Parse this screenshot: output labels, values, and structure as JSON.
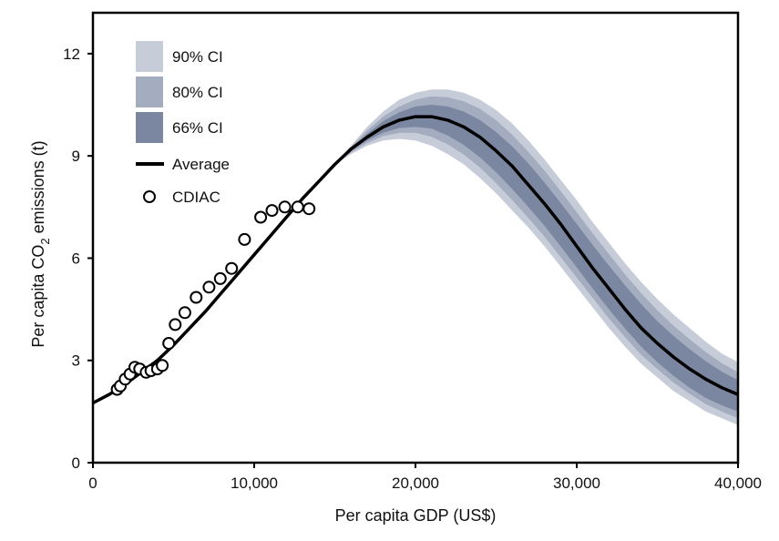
{
  "chart_data": {
    "type": "line",
    "xlabel": "Per capita GDP (US$)",
    "ylabel_parts": {
      "before": "Per capita CO",
      "subscript": "2",
      "after": " emissions (t)"
    },
    "xlim": [
      0,
      40000
    ],
    "ylim": [
      0,
      13.2
    ],
    "x_ticks": [
      {
        "value": 0,
        "label": "0"
      },
      {
        "value": 10000,
        "label": "10,000"
      },
      {
        "value": 20000,
        "label": "20,000"
      },
      {
        "value": 30000,
        "label": "30,000"
      },
      {
        "value": 40000,
        "label": "40,000"
      }
    ],
    "y_ticks": [
      {
        "value": 0,
        "label": "0"
      },
      {
        "value": 3,
        "label": "3"
      },
      {
        "value": 6,
        "label": "6"
      },
      {
        "value": 9,
        "label": "9"
      },
      {
        "value": 12,
        "label": "12"
      }
    ],
    "grid": false,
    "legend_position": "top-left",
    "legend": [
      {
        "label": "90% CI",
        "kind": "swatch",
        "color": "#c7ccd9"
      },
      {
        "label": "80% CI",
        "kind": "swatch",
        "color": "#a4acbf"
      },
      {
        "label": "66% CI",
        "kind": "swatch",
        "color": "#7b86a1"
      },
      {
        "label": "Average",
        "kind": "line",
        "color": "#000000"
      },
      {
        "label": "CDIAC",
        "kind": "marker",
        "color": "#000000"
      }
    ],
    "average": {
      "x": [
        0,
        1000,
        2000,
        3000,
        4000,
        5000,
        6000,
        7000,
        8000,
        9000,
        10000,
        11000,
        12000,
        13000,
        14000,
        15000,
        16000,
        17000,
        18000,
        19000,
        20000,
        21000,
        22000,
        23000,
        24000,
        25000,
        26000,
        27000,
        28000,
        29000,
        30000,
        31000,
        32000,
        33000,
        34000,
        35000,
        36000,
        37000,
        38000,
        39000,
        40000
      ],
      "y": [
        1.75,
        2.0,
        2.3,
        2.65,
        3.0,
        3.45,
        3.95,
        4.45,
        5.0,
        5.55,
        6.1,
        6.65,
        7.2,
        7.75,
        8.25,
        8.75,
        9.2,
        9.55,
        9.85,
        10.05,
        10.15,
        10.15,
        10.05,
        9.85,
        9.55,
        9.15,
        8.7,
        8.15,
        7.6,
        7.0,
        6.35,
        5.7,
        5.1,
        4.5,
        3.95,
        3.5,
        3.1,
        2.75,
        2.45,
        2.2,
        2.0
      ]
    },
    "bands": [
      {
        "name": "90% CI",
        "color": "#c7ccd9",
        "upper": [
          [
            15000,
            8.75
          ],
          [
            16000,
            9.3
          ],
          [
            17000,
            9.85
          ],
          [
            18000,
            10.3
          ],
          [
            19000,
            10.65
          ],
          [
            20000,
            10.85
          ],
          [
            21000,
            10.95
          ],
          [
            22000,
            10.95
          ],
          [
            23000,
            10.85
          ],
          [
            24000,
            10.65
          ],
          [
            25000,
            10.35
          ],
          [
            26000,
            9.95
          ],
          [
            27000,
            9.45
          ],
          [
            28000,
            8.9
          ],
          [
            29000,
            8.3
          ],
          [
            30000,
            7.7
          ],
          [
            31000,
            7.05
          ],
          [
            32000,
            6.45
          ],
          [
            33000,
            5.85
          ],
          [
            34000,
            5.3
          ],
          [
            35000,
            4.8
          ],
          [
            36000,
            4.35
          ],
          [
            37000,
            3.95
          ],
          [
            38000,
            3.55
          ],
          [
            39000,
            3.2
          ],
          [
            40000,
            2.95
          ]
        ],
        "lower": [
          [
            15000,
            8.75
          ],
          [
            16000,
            9.05
          ],
          [
            17000,
            9.3
          ],
          [
            18000,
            9.45
          ],
          [
            19000,
            9.5
          ],
          [
            20000,
            9.45
          ],
          [
            21000,
            9.3
          ],
          [
            22000,
            9.05
          ],
          [
            23000,
            8.75
          ],
          [
            24000,
            8.35
          ],
          [
            25000,
            7.9
          ],
          [
            26000,
            7.4
          ],
          [
            27000,
            6.9
          ],
          [
            28000,
            6.35
          ],
          [
            29000,
            5.75
          ],
          [
            30000,
            5.15
          ],
          [
            31000,
            4.55
          ],
          [
            32000,
            3.95
          ],
          [
            33000,
            3.4
          ],
          [
            34000,
            2.9
          ],
          [
            35000,
            2.5
          ],
          [
            36000,
            2.1
          ],
          [
            37000,
            1.8
          ],
          [
            38000,
            1.5
          ],
          [
            39000,
            1.3
          ],
          [
            40000,
            1.1
          ]
        ]
      },
      {
        "name": "80% CI",
        "color": "#a4acbf",
        "upper": [
          [
            15000,
            8.75
          ],
          [
            16000,
            9.25
          ],
          [
            17000,
            9.75
          ],
          [
            18000,
            10.15
          ],
          [
            19000,
            10.45
          ],
          [
            20000,
            10.65
          ],
          [
            21000,
            10.75
          ],
          [
            22000,
            10.72
          ],
          [
            23000,
            10.6
          ],
          [
            24000,
            10.38
          ],
          [
            25000,
            10.05
          ],
          [
            26000,
            9.62
          ],
          [
            27000,
            9.12
          ],
          [
            28000,
            8.57
          ],
          [
            29000,
            7.97
          ],
          [
            30000,
            7.35
          ],
          [
            31000,
            6.72
          ],
          [
            32000,
            6.12
          ],
          [
            33000,
            5.52
          ],
          [
            34000,
            4.97
          ],
          [
            35000,
            4.47
          ],
          [
            36000,
            4.02
          ],
          [
            37000,
            3.62
          ],
          [
            38000,
            3.25
          ],
          [
            39000,
            2.92
          ],
          [
            40000,
            2.65
          ]
        ],
        "lower": [
          [
            15000,
            8.75
          ],
          [
            16000,
            9.1
          ],
          [
            17000,
            9.38
          ],
          [
            18000,
            9.58
          ],
          [
            19000,
            9.68
          ],
          [
            20000,
            9.68
          ],
          [
            21000,
            9.56
          ],
          [
            22000,
            9.34
          ],
          [
            23000,
            9.04
          ],
          [
            24000,
            8.66
          ],
          [
            25000,
            8.2
          ],
          [
            26000,
            7.7
          ],
          [
            27000,
            7.18
          ],
          [
            28000,
            6.63
          ],
          [
            29000,
            6.03
          ],
          [
            30000,
            5.43
          ],
          [
            31000,
            4.83
          ],
          [
            32000,
            4.23
          ],
          [
            33000,
            3.68
          ],
          [
            34000,
            3.16
          ],
          [
            35000,
            2.75
          ],
          [
            36000,
            2.35
          ],
          [
            37000,
            2.02
          ],
          [
            38000,
            1.72
          ],
          [
            39000,
            1.5
          ],
          [
            40000,
            1.3
          ]
        ]
      },
      {
        "name": "66% CI",
        "color": "#7b86a1",
        "upper": [
          [
            15000,
            8.75
          ],
          [
            16000,
            9.22
          ],
          [
            17000,
            9.65
          ],
          [
            18000,
            10.02
          ],
          [
            19000,
            10.28
          ],
          [
            20000,
            10.45
          ],
          [
            21000,
            10.5
          ],
          [
            22000,
            10.45
          ],
          [
            23000,
            10.3
          ],
          [
            24000,
            10.05
          ],
          [
            25000,
            9.7
          ],
          [
            26000,
            9.28
          ],
          [
            27000,
            8.78
          ],
          [
            28000,
            8.22
          ],
          [
            29000,
            7.62
          ],
          [
            30000,
            7.0
          ],
          [
            31000,
            6.38
          ],
          [
            32000,
            5.78
          ],
          [
            33000,
            5.2
          ],
          [
            34000,
            4.65
          ],
          [
            35000,
            4.15
          ],
          [
            36000,
            3.72
          ],
          [
            37000,
            3.33
          ],
          [
            38000,
            2.98
          ],
          [
            39000,
            2.67
          ],
          [
            40000,
            2.42
          ]
        ],
        "lower": [
          [
            15000,
            8.75
          ],
          [
            16000,
            9.15
          ],
          [
            17000,
            9.45
          ],
          [
            18000,
            9.68
          ],
          [
            19000,
            9.82
          ],
          [
            20000,
            9.85
          ],
          [
            21000,
            9.8
          ],
          [
            22000,
            9.6
          ],
          [
            23000,
            9.32
          ],
          [
            24000,
            8.96
          ],
          [
            25000,
            8.52
          ],
          [
            26000,
            8.03
          ],
          [
            27000,
            7.5
          ],
          [
            28000,
            6.95
          ],
          [
            29000,
            6.35
          ],
          [
            30000,
            5.73
          ],
          [
            31000,
            5.1
          ],
          [
            32000,
            4.5
          ],
          [
            33000,
            3.93
          ],
          [
            34000,
            3.4
          ],
          [
            35000,
            2.95
          ],
          [
            36000,
            2.55
          ],
          [
            37000,
            2.2
          ],
          [
            38000,
            1.9
          ],
          [
            39000,
            1.68
          ],
          [
            40000,
            1.5
          ]
        ]
      }
    ],
    "cdiac": {
      "x": [
        1500,
        1700,
        2000,
        2300,
        2600,
        2900,
        3300,
        3600,
        4000,
        4300,
        4700,
        5100,
        5700,
        6400,
        7200,
        7900,
        8600,
        9400,
        10400,
        11100,
        11900,
        12700,
        13400
      ],
      "y": [
        2.15,
        2.25,
        2.45,
        2.6,
        2.8,
        2.75,
        2.65,
        2.7,
        2.75,
        2.85,
        3.5,
        4.05,
        4.4,
        4.85,
        5.15,
        5.4,
        5.7,
        6.55,
        7.2,
        7.4,
        7.5,
        7.5,
        7.45
      ]
    }
  }
}
